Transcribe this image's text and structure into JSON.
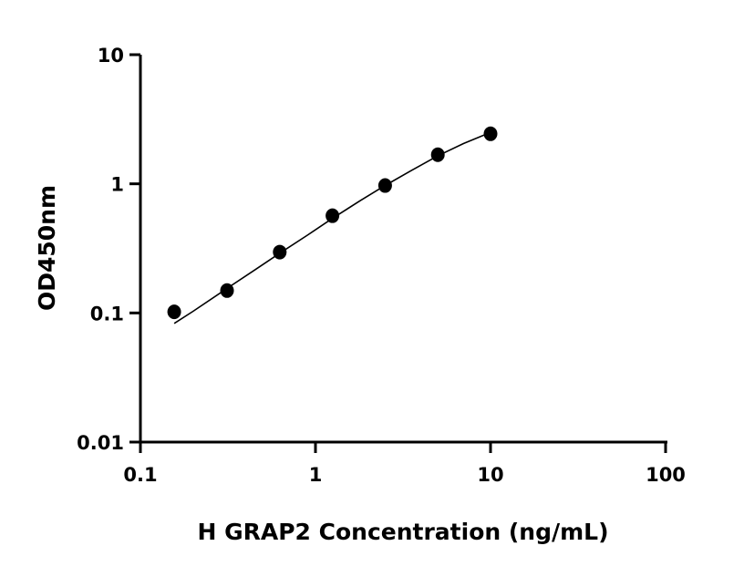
{
  "chart_data": {
    "type": "scatter",
    "title": "",
    "xlabel": "H GRAP2 Concentration (ng/mL)",
    "ylabel": "OD450nm",
    "x_scale": "log",
    "y_scale": "log",
    "xlim": [
      0.1,
      100
    ],
    "ylim": [
      0.01,
      10
    ],
    "x_ticks": [
      0.1,
      1,
      10,
      100
    ],
    "x_tick_labels": [
      "0.1",
      "1",
      "10",
      "100"
    ],
    "y_ticks": [
      0.01,
      0.1,
      1,
      10
    ],
    "y_tick_labels": [
      "0.01",
      "0.1",
      "1",
      "10"
    ],
    "grid": false,
    "point_color": "#000000",
    "points": {
      "x": [
        0.156,
        0.3125,
        0.625,
        1.25,
        2.5,
        5,
        10
      ],
      "y": [
        0.102,
        0.149,
        0.296,
        0.566,
        0.97,
        1.68,
        2.44
      ]
    },
    "fit_curve": {
      "x": [
        0.156,
        0.2,
        0.3125,
        0.45,
        0.625,
        0.9,
        1.25,
        1.8,
        2.5,
        3.5,
        5,
        7,
        10
      ],
      "y": [
        0.083,
        0.103,
        0.155,
        0.215,
        0.29,
        0.4,
        0.54,
        0.74,
        0.97,
        1.26,
        1.65,
        2.05,
        2.5
      ]
    }
  }
}
